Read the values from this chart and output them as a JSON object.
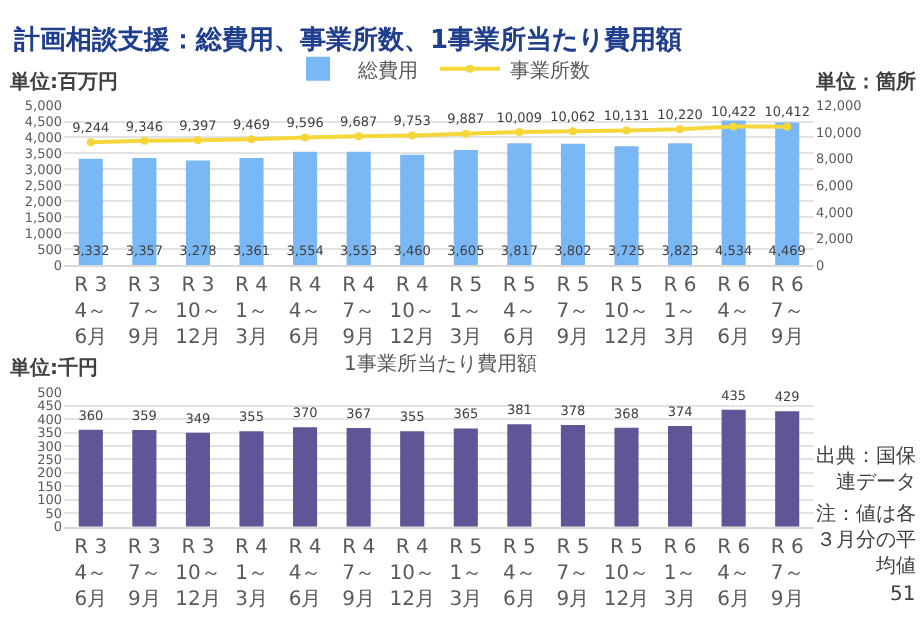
{
  "chart_data": [
    {
      "type": "bar",
      "title": "計画相談支援：総費用、事業所数、1事業所当たり費用額",
      "ylabel": "単位:百万円",
      "y2label": "単位：箇所",
      "categories": [
        "R 3\n4～6月",
        "R 3\n7～9月",
        "R 3\n10～12月",
        "R 4\n1～3月",
        "R 4\n4～6月",
        "R 4\n7～9月",
        "R 4\n10～12月",
        "R 5\n1～3月",
        "R 5\n4～6月",
        "R 5\n7～9月",
        "R 5\n10～12月",
        "R 6\n1～3月",
        "R 6\n4～6月",
        "R 6\n7～9月"
      ],
      "series": [
        {
          "name": "総費用",
          "type": "bar",
          "color": "#7ab8f5",
          "values": [
            3332,
            3357,
            3278,
            3361,
            3554,
            3553,
            3460,
            3605,
            3817,
            3802,
            3725,
            3823,
            4534,
            4469
          ],
          "value_labels": [
            "3,332",
            "3,357",
            "3,278",
            "3,361",
            "3,554",
            "3,553",
            "3,460",
            "3,605",
            "3,817",
            "3,802",
            "3,725",
            "3,823",
            "4,534",
            "4,469"
          ]
        },
        {
          "name": "事業所数",
          "type": "line",
          "axis": "y2",
          "color": "#f5d73c",
          "values": [
            9244,
            9346,
            9397,
            9469,
            9596,
            9687,
            9753,
            9887,
            10009,
            10062,
            10131,
            10220,
            10422,
            10412
          ],
          "value_labels": [
            "9,244",
            "9,346",
            "9,397",
            "9,469",
            "9,596",
            "9,687",
            "9,753",
            "9,887",
            "10,009",
            "10,062",
            "10,131",
            "10,220",
            "10,422",
            "10,412"
          ]
        }
      ],
      "ylim": [
        0,
        5000
      ],
      "yticks": [
        0,
        500,
        {
          "value": 1000,
          "label": "1,000"
        },
        {
          "value": 1500,
          "label": "1,500"
        },
        {
          "value": 2000,
          "label": "2,000"
        },
        {
          "value": 2500,
          "label": "2,500"
        },
        {
          "value": 3000,
          "label": "3,000"
        },
        {
          "value": 3500,
          "label": "3,500"
        },
        {
          "value": 4000,
          "label": "4,000"
        },
        {
          "value": 4500,
          "label": "4,500"
        },
        {
          "value": 5000,
          "label": "5,000"
        }
      ],
      "y2lim": [
        0,
        12000
      ],
      "y2ticks": [
        0,
        {
          "value": 2000,
          "label": "2,000"
        },
        {
          "value": 4000,
          "label": "4,000"
        },
        {
          "value": 6000,
          "label": "6,000"
        },
        {
          "value": 8000,
          "label": "8,000"
        },
        {
          "value": 10000,
          "label": "10,000"
        },
        {
          "value": 12000,
          "label": "12,000"
        }
      ],
      "grid": "y",
      "legend": "top",
      "marker": "circle",
      "line_style": "solid"
    },
    {
      "type": "bar",
      "title": "1事業所当たり費用額",
      "ylabel": "単位:千円",
      "categories": [
        "R 3\n4～6月",
        "R 3\n7～9月",
        "R 3\n10～12月",
        "R 4\n1～3月",
        "R 4\n4～6月",
        "R 4\n7～9月",
        "R 4\n10～12月",
        "R 5\n1～3月",
        "R 5\n4～6月",
        "R 5\n7～9月",
        "R 5\n10～12月",
        "R 6\n1～3月",
        "R 6\n4～6月",
        "R 6\n7～9月"
      ],
      "values": [
        360,
        359,
        349,
        355,
        370,
        367,
        355,
        365,
        381,
        378,
        368,
        374,
        435,
        429
      ],
      "color": "#5f5597",
      "ylim": [
        0,
        500
      ],
      "yticks": [
        0,
        50,
        100,
        150,
        200,
        250,
        300,
        350,
        400,
        450,
        500
      ],
      "grid": "y",
      "data_labels": true,
      "annotations": [
        "出典：国保連データ",
        "注：値は各３月分の平均値",
        "51"
      ]
    }
  ]
}
